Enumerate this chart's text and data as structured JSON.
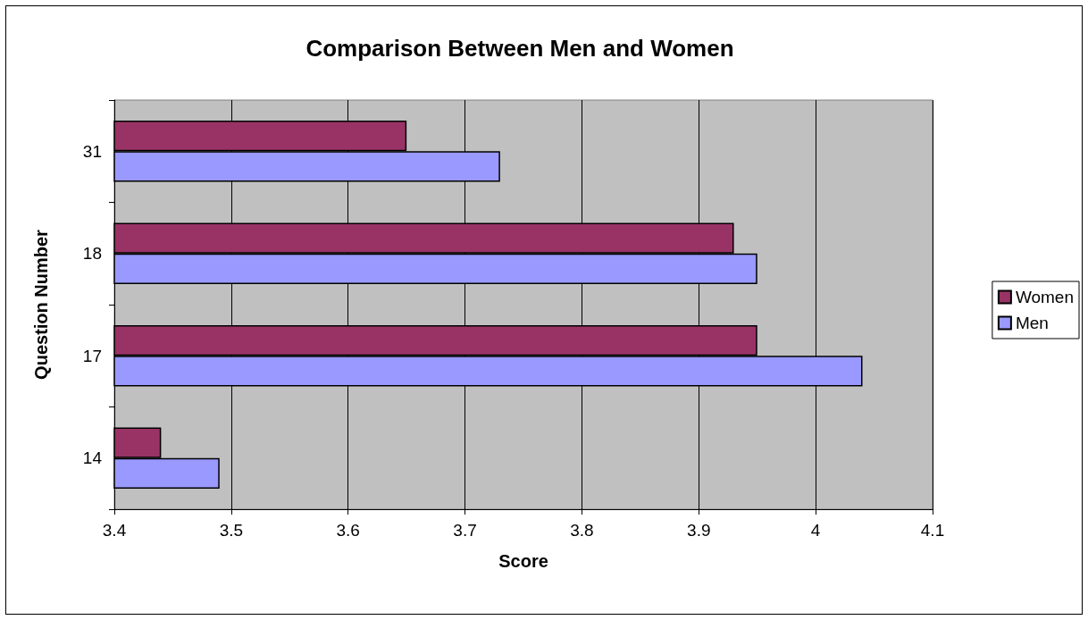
{
  "chart_data": {
    "type": "bar",
    "orientation": "horizontal",
    "title": "Comparison Between Men and Women",
    "xlabel": "Score",
    "ylabel": "Question Number",
    "categories": [
      "31",
      "18",
      "17",
      "14"
    ],
    "series": [
      {
        "name": "Women",
        "color": "#993366",
        "values": [
          3.65,
          3.93,
          3.95,
          3.44
        ]
      },
      {
        "name": "Men",
        "color": "#9999ff",
        "values": [
          3.73,
          3.95,
          4.04,
          3.49
        ]
      }
    ],
    "xlim": [
      3.4,
      4.1
    ],
    "xticks": [
      3.4,
      3.5,
      3.6,
      3.7,
      3.8,
      3.9,
      4,
      4.1
    ],
    "grid": "x",
    "legend": "right"
  }
}
